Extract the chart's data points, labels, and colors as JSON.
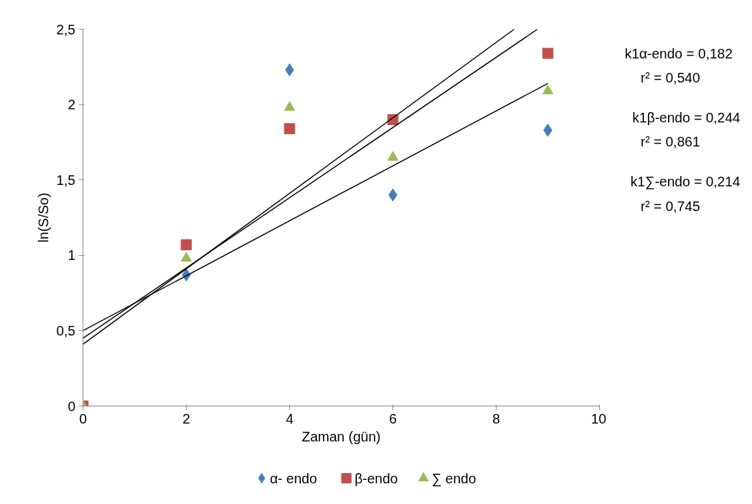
{
  "chart_data": {
    "type": "scatter",
    "xlabel": "Zaman (gün)",
    "ylabel": "ln(S/So)",
    "xlim": [
      0,
      10
    ],
    "xticks": [
      0,
      2,
      4,
      6,
      8,
      10
    ],
    "ylim": [
      0,
      2.5
    ],
    "yticks": [
      0,
      {
        "value": 0.5,
        "label": "0,5"
      },
      1,
      {
        "value": 1.5,
        "label": "1,5"
      },
      2,
      {
        "value": 2.5,
        "label": "2,5"
      }
    ],
    "grid": false,
    "legend": "bottom",
    "series": [
      {
        "name": "α- endo",
        "color": "#4a7ebb",
        "marker": "diamond",
        "x": [
          2,
          4,
          6,
          9
        ],
        "values": [
          0.87,
          2.23,
          1.4,
          1.83
        ]
      },
      {
        "name": "β-endo",
        "color": "#c0504d",
        "marker": "square",
        "x": [
          0,
          2,
          4,
          6,
          9
        ],
        "values": [
          0,
          1.07,
          1.84,
          1.9,
          2.34
        ]
      },
      {
        "name": "∑ endo",
        "color": "#9bbb59",
        "marker": "triangle",
        "x": [
          0,
          2,
          4,
          6,
          9
        ],
        "values": [
          0,
          0.98,
          1.98,
          1.65,
          2.09
        ]
      },
      {
        "type": "line",
        "color": "#000000",
        "marker": "none",
        "x": [
          0,
          8.35
        ],
        "values": [
          0.41,
          2.5
        ]
      },
      {
        "type": "line",
        "color": "#000000",
        "marker": "none",
        "x": [
          0,
          8.8
        ],
        "values": [
          0.45,
          2.5
        ]
      },
      {
        "type": "line",
        "color": "#000000",
        "marker": "none",
        "x": [
          0,
          9
        ],
        "values": [
          0.5,
          2.14
        ]
      }
    ],
    "annotations": [
      "k1α-endo    = 0,182",
      "r² = 0,540",
      "k1β-endo  = 0,244",
      "r² = 0,861",
      "k1∑-endo  = 0,214",
      "r² = 0,745"
    ]
  }
}
